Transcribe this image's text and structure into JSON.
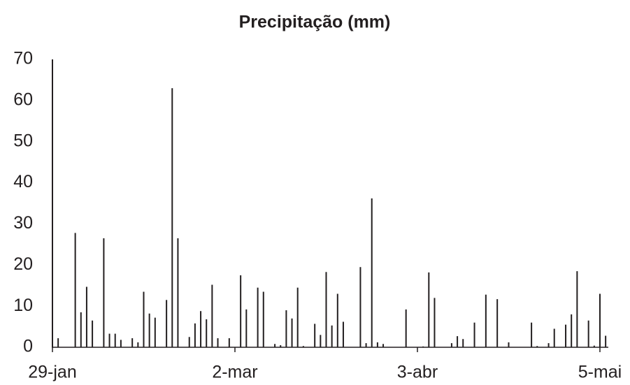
{
  "chart_data": {
    "type": "bar",
    "title": "Precipitação (mm)",
    "categories": [
      "29-jan",
      null,
      null,
      null,
      null,
      null,
      null,
      null,
      null,
      null,
      null,
      null,
      null,
      null,
      null,
      null,
      null,
      null,
      null,
      null,
      null,
      null,
      null,
      null,
      null,
      null,
      null,
      null,
      null,
      null,
      null,
      null,
      "2-mar",
      null,
      null,
      null,
      null,
      null,
      null,
      null,
      null,
      null,
      null,
      null,
      null,
      null,
      null,
      null,
      null,
      null,
      null,
      null,
      null,
      null,
      null,
      null,
      null,
      null,
      null,
      null,
      null,
      null,
      null,
      null,
      "3-abr",
      null,
      null,
      null,
      null,
      null,
      null,
      null,
      null,
      null,
      null,
      null,
      null,
      null,
      null,
      null,
      null,
      null,
      null,
      null,
      null,
      null,
      null,
      null,
      null,
      null,
      null,
      null,
      null,
      null,
      null,
      null,
      "5-mai",
      null
    ],
    "values": [
      70,
      2.2,
      0,
      0,
      27.8,
      8.5,
      14.7,
      6.5,
      0,
      26.5,
      3.3,
      3.3,
      1.8,
      0,
      2.2,
      1.2,
      13.5,
      8.2,
      7.2,
      0,
      11.5,
      63,
      26.5,
      0,
      2.5,
      5.8,
      8.8,
      6.8,
      15.2,
      2.2,
      0,
      2.2,
      0,
      17.5,
      9.2,
      0,
      14.5,
      13.5,
      0,
      0.8,
      0.5,
      9,
      7,
      14.5,
      0.3,
      0,
      5.7,
      3,
      18.3,
      5.3,
      13,
      6.2,
      0,
      0,
      19.5,
      1,
      36.2,
      1.2,
      0.8,
      0,
      0,
      0,
      9.2,
      0,
      0,
      0.2,
      18.2,
      12,
      0,
      0,
      1,
      2.7,
      2,
      0,
      6,
      0,
      12.8,
      0,
      11.7,
      0,
      1.2,
      0,
      0,
      0,
      6,
      0.3,
      0,
      1,
      4.5,
      0,
      5.5,
      8,
      18.5,
      0,
      6.5,
      0.4,
      13,
      2.8
    ],
    "color": "#231f20",
    "ylim": [
      0,
      70
    ],
    "yticks": [
      0,
      10,
      20,
      30,
      40,
      50,
      60,
      70
    ],
    "grid": false
  }
}
